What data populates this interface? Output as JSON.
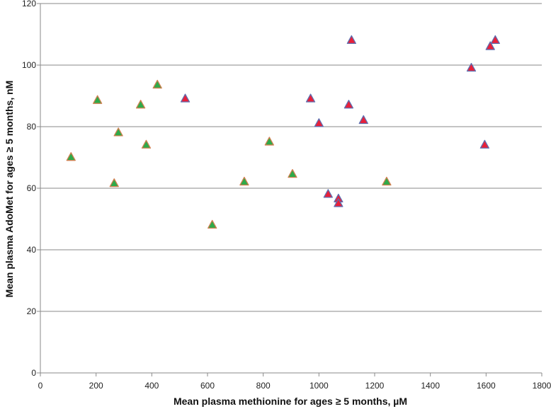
{
  "chart_data": {
    "type": "scatter",
    "title": "",
    "xlabel": "Mean plasma methionine for ages ≥ 5 months, µM",
    "ylabel": "Mean plasma AdoMet for ages ≥ 5 months, nM",
    "xlim": [
      0,
      1800
    ],
    "ylim": [
      0,
      120
    ],
    "x_ticks": [
      0,
      200,
      400,
      600,
      800,
      1000,
      1200,
      1400,
      1600,
      1800
    ],
    "y_ticks": [
      0,
      20,
      40,
      60,
      80,
      100,
      120
    ],
    "grid": "horizontal",
    "series": [
      {
        "marker": "triangle",
        "fill_color": "#2eaa4a",
        "edge_color": "#d08050",
        "points": [
          {
            "x": 110,
            "y": 70
          },
          {
            "x": 205,
            "y": 88.5
          },
          {
            "x": 265,
            "y": 61.5
          },
          {
            "x": 280,
            "y": 78
          },
          {
            "x": 360,
            "y": 87
          },
          {
            "x": 380,
            "y": 74
          },
          {
            "x": 420,
            "y": 93.5
          },
          {
            "x": 617,
            "y": 48
          },
          {
            "x": 732,
            "y": 62
          },
          {
            "x": 822,
            "y": 75
          },
          {
            "x": 905,
            "y": 64.5
          },
          {
            "x": 1243,
            "y": 62
          }
        ]
      },
      {
        "marker": "triangle",
        "fill_color": "#e8203a",
        "edge_color": "#5e6fb0",
        "points": [
          {
            "x": 520,
            "y": 89
          },
          {
            "x": 970,
            "y": 89
          },
          {
            "x": 1000,
            "y": 81
          },
          {
            "x": 1033,
            "y": 58
          },
          {
            "x": 1070,
            "y": 56.5
          },
          {
            "x": 1070,
            "y": 55
          },
          {
            "x": 1107,
            "y": 87
          },
          {
            "x": 1117,
            "y": 108
          },
          {
            "x": 1160,
            "y": 82
          },
          {
            "x": 1547,
            "y": 99
          },
          {
            "x": 1595,
            "y": 74
          },
          {
            "x": 1615,
            "y": 106
          },
          {
            "x": 1633,
            "y": 108
          }
        ]
      }
    ]
  }
}
